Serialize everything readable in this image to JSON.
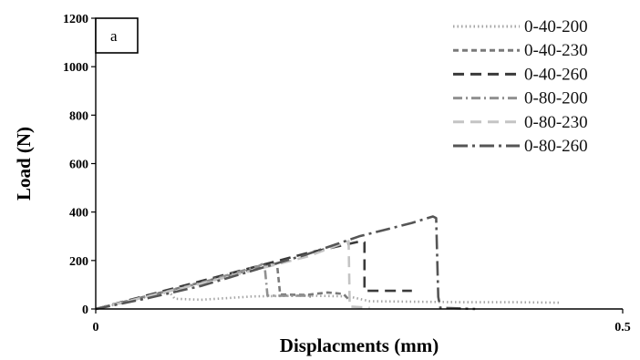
{
  "chart_data": {
    "type": "line",
    "panel_label": "a",
    "xlabel": "Displacments (mm)",
    "ylabel": "Load (N)",
    "xlim": [
      0,
      0.5
    ],
    "ylim": [
      0,
      1200
    ],
    "x_ticks": [
      0,
      0.5
    ],
    "x_tick_labels": [
      "0",
      "0.5"
    ],
    "y_ticks": [
      0,
      200,
      400,
      600,
      800,
      1000,
      1200
    ],
    "legend_position": "top-right",
    "grid": false,
    "series": [
      {
        "name": "0-40-200",
        "color": "#a6a6a6",
        "dash": "dotted",
        "points": [
          [
            0,
            0
          ],
          [
            0.03,
            30
          ],
          [
            0.06,
            62
          ],
          [
            0.07,
            70
          ],
          [
            0.075,
            42
          ],
          [
            0.1,
            38
          ],
          [
            0.15,
            52
          ],
          [
            0.2,
            55
          ],
          [
            0.24,
            52
          ],
          [
            0.26,
            32
          ],
          [
            0.3,
            30
          ],
          [
            0.35,
            28
          ],
          [
            0.4,
            28
          ],
          [
            0.44,
            26
          ]
        ]
      },
      {
        "name": "0-40-230",
        "color": "#7a7a7a",
        "dash": "dash",
        "points": [
          [
            0,
            0
          ],
          [
            0.05,
            55
          ],
          [
            0.1,
            110
          ],
          [
            0.15,
            165
          ],
          [
            0.172,
            188
          ],
          [
            0.175,
            60
          ],
          [
            0.2,
            58
          ],
          [
            0.22,
            68
          ],
          [
            0.235,
            62
          ],
          [
            0.24,
            40
          ]
        ]
      },
      {
        "name": "0-40-260",
        "color": "#3a3a3a",
        "dash": "longdash",
        "points": [
          [
            0,
            0
          ],
          [
            0.1,
            115
          ],
          [
            0.2,
            230
          ],
          [
            0.252,
            280
          ],
          [
            0.255,
            275
          ],
          [
            0.255,
            75
          ],
          [
            0.3,
            75
          ]
        ]
      },
      {
        "name": "0-80-200",
        "color": "#909090",
        "dash": "dashdot",
        "points": [
          [
            0,
            0
          ],
          [
            0.1,
            108
          ],
          [
            0.155,
            178
          ],
          [
            0.16,
            190
          ],
          [
            0.163,
            55
          ],
          [
            0.2,
            55
          ],
          [
            0.205,
            50
          ]
        ]
      },
      {
        "name": "0-80-230",
        "color": "#c4c4c4",
        "dash": "longdash",
        "points": [
          [
            0,
            0
          ],
          [
            0.1,
            105
          ],
          [
            0.2,
            215
          ],
          [
            0.24,
            280
          ],
          [
            0.241,
            10
          ],
          [
            0.26,
            5
          ]
        ]
      },
      {
        "name": "0-80-260",
        "color": "#555555",
        "dash": "longdashdot",
        "points": [
          [
            0,
            0
          ],
          [
            0.05,
            45
          ],
          [
            0.1,
            95
          ],
          [
            0.15,
            160
          ],
          [
            0.2,
            225
          ],
          [
            0.25,
            300
          ],
          [
            0.3,
            355
          ],
          [
            0.32,
            382
          ],
          [
            0.323,
            375
          ],
          [
            0.325,
            50
          ],
          [
            0.327,
            5
          ],
          [
            0.36,
            0
          ]
        ]
      }
    ]
  }
}
